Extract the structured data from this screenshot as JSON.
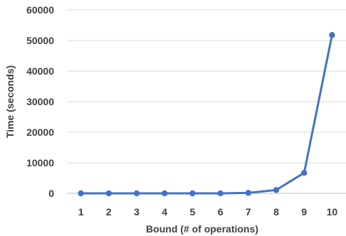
{
  "chart_data": {
    "type": "line",
    "title": "",
    "xlabel": "Bound (# of operations)",
    "ylabel": "Time (seconds)",
    "x": [
      "1",
      "2",
      "3",
      "4",
      "5",
      "6",
      "7",
      "8",
      "9",
      "10"
    ],
    "series": [
      {
        "values": [
          0,
          0,
          0,
          0,
          0,
          10,
          150,
          1100,
          6700,
          51800
        ],
        "color": "#4472c4"
      }
    ],
    "ylim": [
      0,
      60000
    ],
    "yticks": [
      "0",
      "10000",
      "20000",
      "30000",
      "40000",
      "50000",
      "60000"
    ],
    "grid": true,
    "legend": "none"
  }
}
